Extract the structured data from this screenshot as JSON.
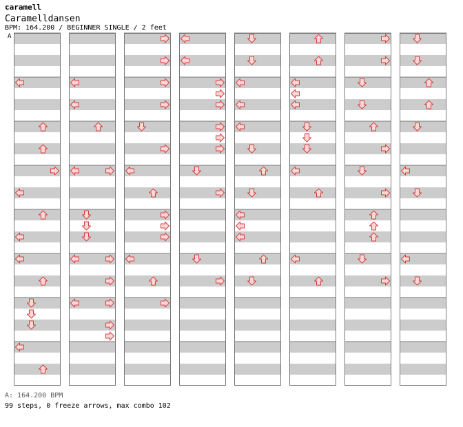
{
  "header": {
    "author": "caramell",
    "song_title": "Caramelldansen",
    "info": "BPM: 164.200 / BEGINNER SINGLE / 2 feet"
  },
  "bpm_marker": "A",
  "footer": {
    "bpm_line": "A: 164.200 BPM",
    "stats": "99 steps, 0 freeze arrows, max combo 102"
  },
  "colors": {
    "arrow_fill": "#ffd6d6",
    "arrow_stroke": "#d04040",
    "stripe": "#cccccc",
    "column_border": "#777777"
  },
  "chart": {
    "columns": 8,
    "measures_per_column": 8,
    "rows_per_measure": 4,
    "notes": [
      {
        "m": 1,
        "beat": 0,
        "dir": "left"
      },
      {
        "m": 2,
        "beat": 0,
        "dir": "up"
      },
      {
        "m": 2,
        "beat": 2,
        "dir": "up"
      },
      {
        "m": 3,
        "beat": 0,
        "dir": "right"
      },
      {
        "m": 3,
        "beat": 2,
        "dir": "left"
      },
      {
        "m": 4,
        "beat": 0,
        "dir": "up"
      },
      {
        "m": 4,
        "beat": 2,
        "dir": "left"
      },
      {
        "m": 5,
        "beat": 0,
        "dir": "left"
      },
      {
        "m": 5,
        "beat": 2,
        "dir": "up"
      },
      {
        "m": 6,
        "beat": 0,
        "dir": "down"
      },
      {
        "m": 6,
        "beat": 1,
        "dir": "down"
      },
      {
        "m": 6,
        "beat": 2,
        "dir": "down"
      },
      {
        "m": 7,
        "beat": 0,
        "dir": "left"
      },
      {
        "m": 7,
        "beat": 2,
        "dir": "up"
      },
      {
        "m": 9,
        "beat": 0,
        "dir": "left"
      },
      {
        "m": 9,
        "beat": 2,
        "dir": "left"
      },
      {
        "m": 10,
        "beat": 0,
        "dir": "up"
      },
      {
        "m": 11,
        "beat": 0,
        "dir": "left"
      },
      {
        "m": 11,
        "beat": 0,
        "dir": "right"
      },
      {
        "m": 12,
        "beat": 0,
        "dir": "down"
      },
      {
        "m": 12,
        "beat": 1,
        "dir": "down"
      },
      {
        "m": 12,
        "beat": 2,
        "dir": "down"
      },
      {
        "m": 13,
        "beat": 0,
        "dir": "left"
      },
      {
        "m": 13,
        "beat": 0,
        "dir": "right"
      },
      {
        "m": 13,
        "beat": 2,
        "dir": "right"
      },
      {
        "m": 14,
        "beat": 0,
        "dir": "left"
      },
      {
        "m": 14,
        "beat": 0,
        "dir": "right"
      },
      {
        "m": 14,
        "beat": 2,
        "dir": "right"
      },
      {
        "m": 14,
        "beat": 3,
        "dir": "right"
      },
      {
        "m": 16,
        "beat": 0,
        "dir": "right"
      },
      {
        "m": 16,
        "beat": 2,
        "dir": "right"
      },
      {
        "m": 17,
        "beat": 0,
        "dir": "right"
      },
      {
        "m": 17,
        "beat": 2,
        "dir": "right"
      },
      {
        "m": 18,
        "beat": 0,
        "dir": "down"
      },
      {
        "m": 18,
        "beat": 2,
        "dir": "right"
      },
      {
        "m": 19,
        "beat": 0,
        "dir": "left"
      },
      {
        "m": 19,
        "beat": 2,
        "dir": "up"
      },
      {
        "m": 20,
        "beat": 0,
        "dir": "right"
      },
      {
        "m": 20,
        "beat": 1,
        "dir": "right"
      },
      {
        "m": 20,
        "beat": 2,
        "dir": "right"
      },
      {
        "m": 21,
        "beat": 0,
        "dir": "left"
      },
      {
        "m": 21,
        "beat": 2,
        "dir": "up"
      },
      {
        "m": 22,
        "beat": 0,
        "dir": "right"
      },
      {
        "m": 24,
        "beat": 0,
        "dir": "left"
      },
      {
        "m": 24,
        "beat": 2,
        "dir": "left"
      },
      {
        "m": 25,
        "beat": 0,
        "dir": "right"
      },
      {
        "m": 25,
        "beat": 1,
        "dir": "right"
      },
      {
        "m": 25,
        "beat": 2,
        "dir": "right"
      },
      {
        "m": 26,
        "beat": 0,
        "dir": "right"
      },
      {
        "m": 26,
        "beat": 1,
        "dir": "right"
      },
      {
        "m": 26,
        "beat": 2,
        "dir": "right"
      },
      {
        "m": 27,
        "beat": 0,
        "dir": "down"
      },
      {
        "m": 27,
        "beat": 2,
        "dir": "right"
      },
      {
        "m": 29,
        "beat": 0,
        "dir": "down"
      },
      {
        "m": 29,
        "beat": 2,
        "dir": "right"
      },
      {
        "m": 32,
        "beat": 0,
        "dir": "down"
      },
      {
        "m": 32,
        "beat": 2,
        "dir": "down"
      },
      {
        "m": 33,
        "beat": 0,
        "dir": "left"
      },
      {
        "m": 33,
        "beat": 2,
        "dir": "left"
      },
      {
        "m": 34,
        "beat": 0,
        "dir": "left"
      },
      {
        "m": 34,
        "beat": 2,
        "dir": "down"
      },
      {
        "m": 35,
        "beat": 0,
        "dir": "up"
      },
      {
        "m": 35,
        "beat": 2,
        "dir": "down"
      },
      {
        "m": 36,
        "beat": 0,
        "dir": "left"
      },
      {
        "m": 36,
        "beat": 1,
        "dir": "left"
      },
      {
        "m": 36,
        "beat": 2,
        "dir": "left"
      },
      {
        "m": 37,
        "beat": 0,
        "dir": "up"
      },
      {
        "m": 37,
        "beat": 2,
        "dir": "down"
      },
      {
        "m": 40,
        "beat": 0,
        "dir": "up"
      },
      {
        "m": 40,
        "beat": 2,
        "dir": "up"
      },
      {
        "m": 41,
        "beat": 0,
        "dir": "left"
      },
      {
        "m": 41,
        "beat": 1,
        "dir": "left"
      },
      {
        "m": 41,
        "beat": 2,
        "dir": "left"
      },
      {
        "m": 42,
        "beat": 0,
        "dir": "down"
      },
      {
        "m": 42,
        "beat": 1,
        "dir": "down"
      },
      {
        "m": 42,
        "beat": 2,
        "dir": "down"
      },
      {
        "m": 43,
        "beat": 0,
        "dir": "left"
      },
      {
        "m": 43,
        "beat": 2,
        "dir": "up"
      },
      {
        "m": 45,
        "beat": 0,
        "dir": "left"
      },
      {
        "m": 45,
        "beat": 2,
        "dir": "up"
      },
      {
        "m": 48,
        "beat": 0,
        "dir": "right"
      },
      {
        "m": 48,
        "beat": 2,
        "dir": "right"
      },
      {
        "m": 49,
        "beat": 0,
        "dir": "down"
      },
      {
        "m": 49,
        "beat": 2,
        "dir": "down"
      },
      {
        "m": 50,
        "beat": 0,
        "dir": "up"
      },
      {
        "m": 50,
        "beat": 2,
        "dir": "right"
      },
      {
        "m": 51,
        "beat": 0,
        "dir": "down"
      },
      {
        "m": 51,
        "beat": 2,
        "dir": "right"
      },
      {
        "m": 52,
        "beat": 0,
        "dir": "up"
      },
      {
        "m": 52,
        "beat": 1,
        "dir": "up"
      },
      {
        "m": 52,
        "beat": 2,
        "dir": "up"
      },
      {
        "m": 53,
        "beat": 0,
        "dir": "down"
      },
      {
        "m": 53,
        "beat": 2,
        "dir": "right"
      },
      {
        "m": 56,
        "beat": 0,
        "dir": "down"
      },
      {
        "m": 56,
        "beat": 2,
        "dir": "down"
      },
      {
        "m": 57,
        "beat": 0,
        "dir": "up"
      },
      {
        "m": 57,
        "beat": 2,
        "dir": "up"
      },
      {
        "m": 58,
        "beat": 0,
        "dir": "down"
      },
      {
        "m": 59,
        "beat": 0,
        "dir": "left"
      },
      {
        "m": 59,
        "beat": 2,
        "dir": "down"
      },
      {
        "m": 61,
        "beat": 0,
        "dir": "left"
      },
      {
        "m": 61,
        "beat": 2,
        "dir": "down"
      }
    ]
  }
}
